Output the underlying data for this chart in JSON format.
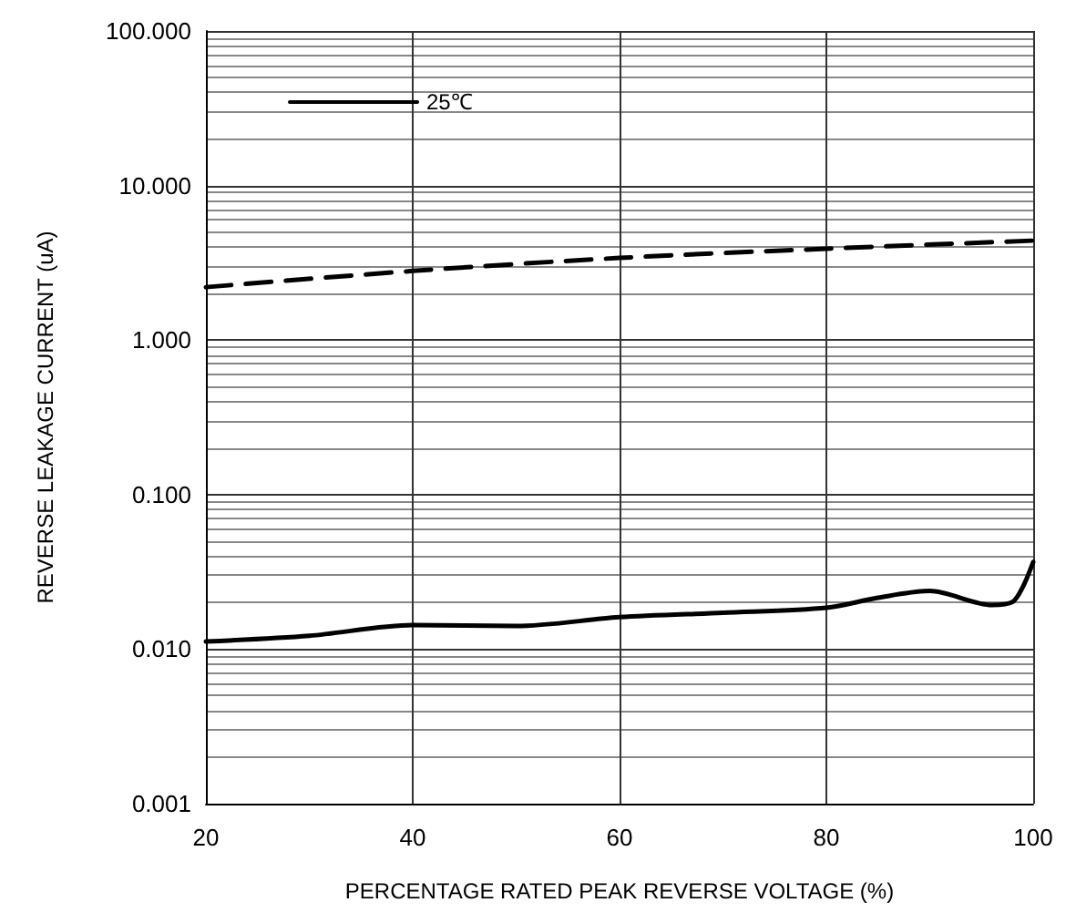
{
  "chart_data": {
    "type": "line",
    "xlabel": "PERCENTAGE RATED PEAK REVERSE VOLTAGE (%)",
    "ylabel": "REVERSE LEAKAGE CURRENT (uA)",
    "log": "y",
    "xlim": [
      20,
      100
    ],
    "xticks": [
      20,
      40,
      60,
      80,
      100
    ],
    "ylim": [
      0.001,
      100
    ],
    "yticks": [
      {
        "value": 0.001,
        "label": "0.001"
      },
      {
        "value": 0.01,
        "label": "0.010"
      },
      {
        "value": 0.1,
        "label": "0.100"
      },
      {
        "value": 1,
        "label": "1.000"
      },
      {
        "value": 10,
        "label": "10.000"
      },
      {
        "value": 100,
        "label": "100.000"
      }
    ],
    "grid": true,
    "legend": "top left",
    "marker": "none",
    "series": [
      {
        "name": "25℃",
        "color": "#000000",
        "line_style": "solid",
        "x": [
          20,
          30,
          40,
          50,
          60,
          70,
          80,
          85,
          90,
          96,
          98,
          99,
          100
        ],
        "values": [
          0.0112,
          0.0122,
          0.0143,
          0.0141,
          0.0161,
          0.0172,
          0.0185,
          0.0215,
          0.0238,
          0.0193,
          0.0202,
          0.0253,
          0.0366
        ]
      },
      {
        "color": "#000000",
        "line_style": "dashed",
        "x": [
          20,
          40,
          60,
          80,
          100
        ],
        "values": [
          2.2,
          2.8,
          3.4,
          3.9,
          4.4
        ]
      }
    ]
  }
}
